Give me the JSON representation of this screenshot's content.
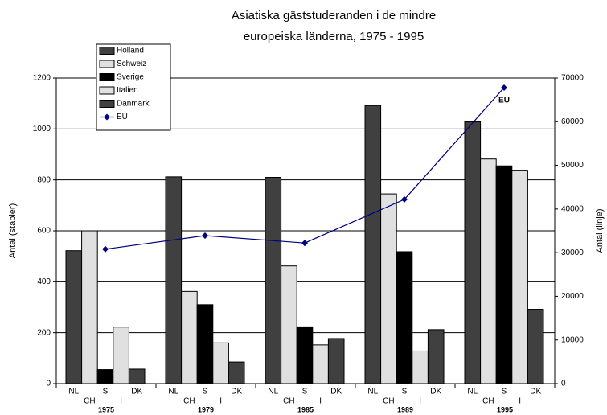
{
  "chart_data": {
    "type": "bar",
    "title": [
      "Asiatiska gäststuderanden i de mindre",
      "europeiska länderna, 1975 - 1995"
    ],
    "y_label": "Antal (stapler)",
    "y2_label": "Antal (linje)",
    "categories": [
      "1975",
      "1979",
      "1985",
      "1989",
      "1995"
    ],
    "bar_labels": [
      "NL",
      "CH",
      "S",
      "I",
      "DK"
    ],
    "series": [
      {
        "name": "Holland",
        "color": "#404040",
        "values": [
          522,
          812,
          810,
          1092,
          1028
        ]
      },
      {
        "name": "Schweiz",
        "color": "#e0e0e0",
        "values": [
          600,
          362,
          462,
          745,
          882
        ]
      },
      {
        "name": "Sverige",
        "color": "#000000",
        "values": [
          55,
          310,
          223,
          518,
          855
        ]
      },
      {
        "name": "Italien",
        "color": "#e0e0e0",
        "values": [
          222,
          160,
          152,
          128,
          838
        ]
      },
      {
        "name": "Danmark",
        "color": "#404040",
        "values": [
          57,
          85,
          177,
          212,
          292
        ]
      },
      {
        "name": "EU",
        "color": "#000080",
        "axis": "y2",
        "type": "line",
        "values": [
          30800,
          33900,
          32200,
          42200,
          67800
        ]
      }
    ],
    "annotation": "EU",
    "ylim": [
      0,
      1200
    ],
    "yticks": [
      0,
      200,
      400,
      600,
      800,
      1000,
      1200
    ],
    "y2lim": [
      0,
      70000
    ],
    "y2ticks": [
      0,
      10000,
      20000,
      30000,
      40000,
      50000,
      60000,
      70000
    ],
    "grid": true,
    "legend": "upper left"
  }
}
